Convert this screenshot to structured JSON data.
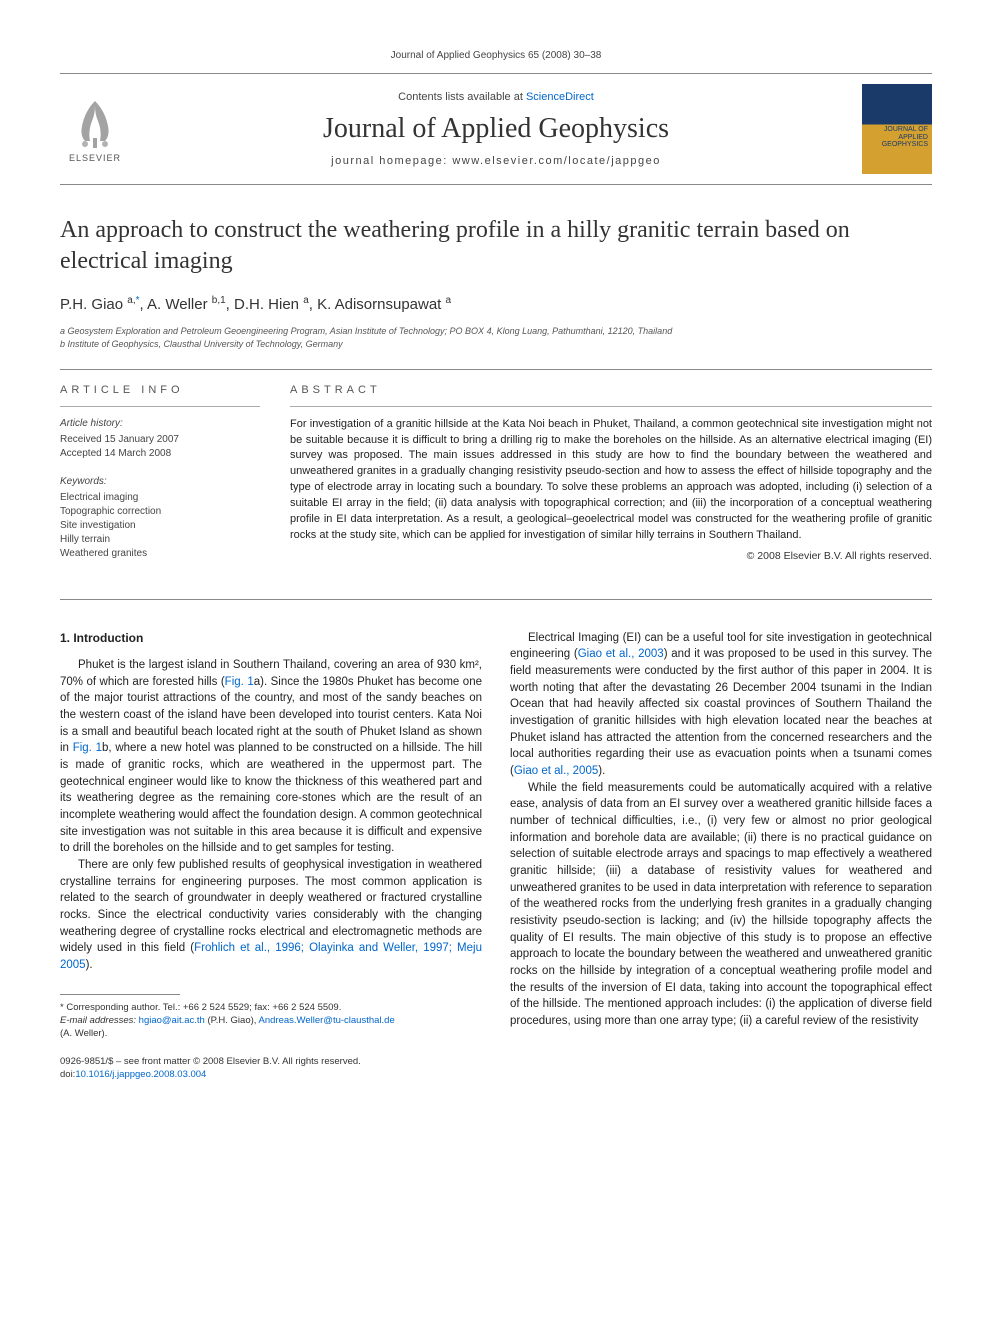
{
  "header": {
    "citation": "Journal of Applied Geophysics 65 (2008) 30–38",
    "contents_prefix": "Contents lists available at ",
    "contents_link": "ScienceDirect",
    "journal_title": "Journal of Applied Geophysics",
    "homepage_prefix": "journal homepage: ",
    "homepage_url": "www.elsevier.com/locate/jappgeo",
    "elsevier_label": "ELSEVIER",
    "cover_text_line1": "JOURNAL OF",
    "cover_text_line2": "APPLIED",
    "cover_text_line3": "GEOPHYSICS"
  },
  "article": {
    "title": "An approach to construct the weathering profile in a hilly granitic terrain based on electrical imaging",
    "authors_html": "P.H. Giao <sup>a,</sup><sup class=\"corr-star\">*</sup>, A. Weller <sup>b,1</sup>, D.H. Hien <sup>a</sup>, K. Adisornsupawat <sup>a</sup>",
    "affiliations": [
      "a  Geosystem Exploration and Petroleum Geoengineering Program, Asian Institute of Technology; PO BOX 4, Klong Luang, Pathumthani, 12120, Thailand",
      "b  Institute of Geophysics, Clausthal University of Technology, Germany"
    ]
  },
  "info": {
    "label": "ARTICLE INFO",
    "history_heading": "Article history:",
    "history_lines": [
      "Received 15 January 2007",
      "Accepted 14 March 2008"
    ],
    "keywords_heading": "Keywords:",
    "keywords": [
      "Electrical imaging",
      "Topographic correction",
      "Site investigation",
      "Hilly terrain",
      "Weathered granites"
    ]
  },
  "abstract": {
    "label": "ABSTRACT",
    "text": "For investigation of a granitic hillside at the Kata Noi beach in Phuket, Thailand, a common geotechnical site investigation might not be suitable because it is difficult to bring a drilling rig to make the boreholes on the hillside. As an alternative electrical imaging (EI) survey was proposed. The main issues addressed in this study are how to find the boundary between the weathered and unweathered granites in a gradually changing resistivity pseudo-section and how to assess the effect of hillside topography and the type of electrode array in locating such a boundary. To solve these problems an approach was adopted, including (i) selection of a suitable EI array in the field; (ii) data analysis with topographical correction; and (iii) the incorporation of a conceptual weathering profile in EI data interpretation. As a result, a geological–geoelectrical model was constructed for the weathering profile of granitic rocks at the study site, which can be applied for investigation of similar hilly terrains in Southern Thailand.",
    "copyright": "© 2008 Elsevier B.V. All rights reserved."
  },
  "body": {
    "section_heading": "1. Introduction",
    "col1_p1": "Phuket is the largest island in Southern Thailand, covering an area of 930 km², 70% of which are forested hills (Fig. 1a). Since the 1980s Phuket has become one of the major tourist attractions of the country, and most of the sandy beaches on the western coast of the island have been developed into tourist centers. Kata Noi is a small and beautiful beach located right at the south of Phuket Island as shown in Fig. 1b, where a new hotel was planned to be constructed on a hillside. The hill is made of granitic rocks, which are weathered in the uppermost part. The geotechnical engineer would like to know the thickness of this weathered part and its weathering degree as the remaining core-stones which are the result of an incomplete weathering would affect the foundation design. A common geotechnical site investigation was not suitable in this area because it is difficult and expensive to drill the boreholes on the hillside and to get samples for testing.",
    "col1_p2": "There are only few published results of geophysical investigation in weathered crystalline terrains for engineering purposes. The most common application is related to the search of groundwater in deeply weathered or fractured crystalline rocks. Since the electrical conductivity varies considerably with the changing weathering degree of crystalline rocks electrical and electromagnetic methods are widely used in this field (Frohlich et al., 1996; Olayinka and Weller, 1997; Meju 2005).",
    "col2_p1": "Electrical Imaging (EI) can be a useful tool for site investigation in geotechnical engineering (Giao et al., 2003) and it was proposed to be used in this survey. The field measurements were conducted by the first author of this paper in 2004. It is worth noting that after the devastating 26 December 2004 tsunami in the Indian Ocean that had heavily affected six coastal provinces of Southern Thailand the investigation of granitic hillsides with high elevation located near the beaches at Phuket island has attracted the attention from the concerned researchers and the local authorities regarding their use as evacuation points when a tsunami comes (Giao et al., 2005).",
    "col2_p2": "While the field measurements could be automatically acquired with a relative ease, analysis of data from an EI survey over a weathered granitic hillside faces a number of technical difficulties, i.e., (i) very few or almost no prior geological information and borehole data are available; (ii) there is no practical guidance on selection of suitable electrode arrays and spacings to map effectively a weathered granitic hillside; (iii) a database of resistivity values for weathered and unweathered granites to be used in data interpretation with reference to separation of the weathered rocks from the underlying fresh granites in a gradually changing resistivity pseudo-section is lacking; and (iv) the hillside topography affects the quality of EI results. The main objective of this study is to propose an effective approach to locate the boundary between the weathered and unweathered granitic rocks on the hillside by integration of a conceptual weathering profile model and the results of the inversion of EI data, taking into account the topographical effect of the hillside. The mentioned approach includes: (i) the application of diverse field procedures, using more than one array type; (ii) a careful review of the resistivity"
  },
  "footnotes": {
    "corr": "* Corresponding author. Tel.: +66 2 524 5529; fax: +66 2 524 5509.",
    "email_label": "E-mail addresses: ",
    "email1": "hgiao@ait.ac.th",
    "email1_who": " (P.H. Giao), ",
    "email2": "Andreas.Weller@tu-clausthal.de",
    "email2_who": "(A. Weller)."
  },
  "footer": {
    "line1": "0926-9851/$ – see front matter © 2008 Elsevier B.V. All rights reserved.",
    "doi_label": "doi:",
    "doi": "10.1016/j.jappgeo.2008.03.004"
  },
  "refs": {
    "fig1a": "Fig. 1",
    "fig1b": "Fig. 1",
    "frohlich": "Frohlich et al., 1996; Olayinka and Weller, 1997; Meju 2005",
    "giao2003": "Giao et al., 2003",
    "giao2005": "Giao et al., 2005"
  },
  "colors": {
    "link": "#0066cc",
    "text": "#222222",
    "muted": "#555555",
    "rule": "#888888"
  }
}
